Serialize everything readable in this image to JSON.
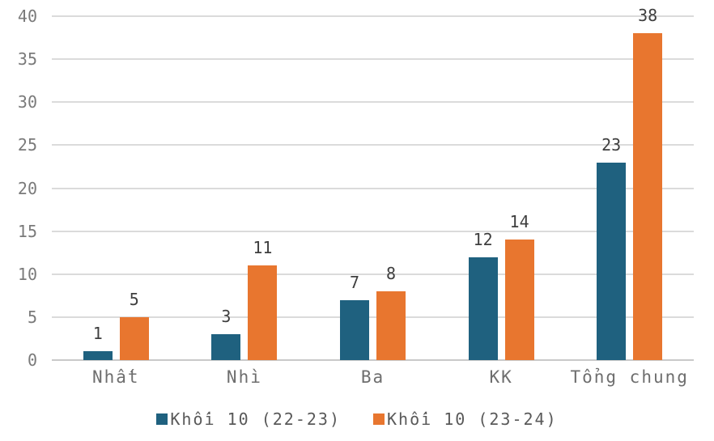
{
  "chart_data": {
    "type": "bar",
    "title": "",
    "categories": [
      "Nhất",
      "Nhì",
      "Ba",
      "KK",
      "Tổng chung"
    ],
    "series": [
      {
        "name": "Khối 10 (22-23)",
        "color": "#1f617f",
        "values": [
          1,
          3,
          7,
          12,
          23
        ]
      },
      {
        "name": "Khối 10 (23-24)",
        "color": "#e8762f",
        "values": [
          5,
          11,
          8,
          14,
          38
        ]
      }
    ],
    "xlabel": "",
    "ylabel": "",
    "ylim": [
      0,
      40
    ],
    "y_ticks": [
      0,
      5,
      10,
      15,
      20,
      25,
      30,
      35,
      40
    ],
    "grid": true,
    "value_labels": true,
    "legend_position": "bottom"
  },
  "style_colors": {
    "background": "#ffffff",
    "gridline": "#dbdbdb",
    "baseline": "#c9c9c9",
    "tick_label": "#7a7a7a",
    "category_label": "#6e6e6e",
    "value_label": "#3e3e3e",
    "legend_label": "#595959"
  }
}
